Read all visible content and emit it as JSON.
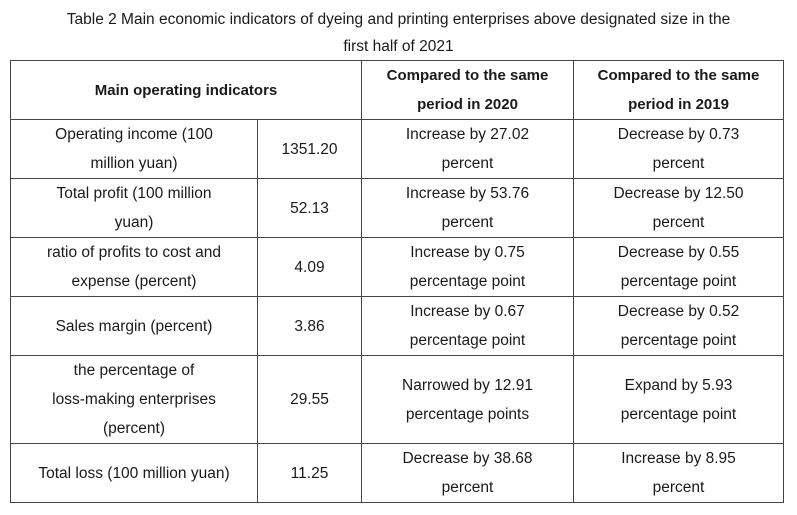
{
  "caption": {
    "line1": "Table 2 Main economic indicators of dyeing and printing enterprises above designated size in the",
    "line2": "first half of 2021"
  },
  "table": {
    "headers": {
      "indicator": "Main operating indicators",
      "vs2020_line1": "Compared to the same",
      "vs2020_line2": "period in 2020",
      "vs2019_line1": "Compared to the same",
      "vs2019_line2": "period in 2019"
    },
    "rows": [
      {
        "indicator_lines": [
          "Operating income (100",
          "million yuan)"
        ],
        "value": "1351.20",
        "vs2020_lines": [
          "Increase by 27.02",
          "percent"
        ],
        "vs2019_lines": [
          "Decrease by 0.73",
          "percent"
        ]
      },
      {
        "indicator_lines": [
          "Total profit (100 million",
          "yuan)"
        ],
        "value": "52.13",
        "vs2020_lines": [
          "Increase by 53.76",
          "percent"
        ],
        "vs2019_lines": [
          "Decrease by 12.50",
          "percent"
        ]
      },
      {
        "indicator_lines": [
          "ratio of profits to cost and",
          "expense (percent)"
        ],
        "value": "4.09",
        "vs2020_lines": [
          "Increase by 0.75",
          "percentage point"
        ],
        "vs2019_lines": [
          "Decrease by 0.55",
          "percentage point"
        ]
      },
      {
        "indicator_lines": [
          "Sales margin (percent)"
        ],
        "value": "3.86",
        "vs2020_lines": [
          "Increase by 0.67",
          "percentage point"
        ],
        "vs2019_lines": [
          "Decrease by 0.52",
          "percentage point"
        ]
      },
      {
        "indicator_lines": [
          "the percentage of",
          "loss-making enterprises",
          "(percent)"
        ],
        "value": "29.55",
        "vs2020_lines": [
          "Narrowed by 12.91",
          "percentage points"
        ],
        "vs2019_lines": [
          "Expand by 5.93",
          "percentage point"
        ]
      },
      {
        "indicator_lines": [
          "Total loss (100 million yuan)"
        ],
        "value": "11.25",
        "vs2020_lines": [
          "Decrease by 38.68",
          "percent"
        ],
        "vs2019_lines": [
          "Increase by 8.95",
          "percent"
        ]
      }
    ]
  }
}
